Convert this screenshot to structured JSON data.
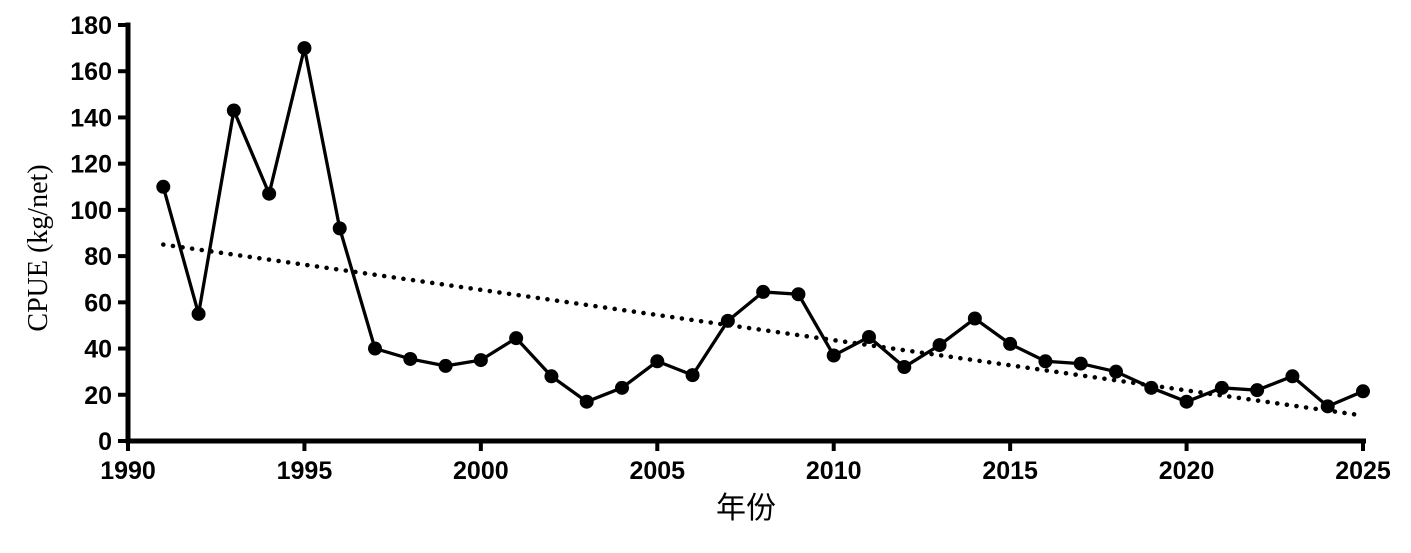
{
  "figure": {
    "background_color": "#ffffff",
    "ink_color": "#000000"
  },
  "chart_data": {
    "type": "line",
    "title": "",
    "xlabel": "年份",
    "ylabel": "CPUE (kg/net)",
    "xlim": [
      1990,
      2025
    ],
    "ylim": [
      0,
      180
    ],
    "x_ticks": [
      1990,
      1995,
      2000,
      2005,
      2010,
      2015,
      2020,
      2025
    ],
    "y_ticks": [
      0,
      20,
      40,
      60,
      80,
      100,
      120,
      140,
      160,
      180
    ],
    "grid": false,
    "legend": "none",
    "series": [
      {
        "name": "cpue-observed",
        "marker": "circle",
        "line_style": "solid",
        "color": "#000000",
        "x": [
          1991,
          1992,
          1993,
          1994,
          1995,
          1996,
          1997,
          1998,
          1999,
          2000,
          2001,
          2002,
          2003,
          2004,
          2005,
          2006,
          2007,
          2008,
          2009,
          2010,
          2011,
          2012,
          2013,
          2014,
          2015,
          2016,
          2017,
          2018,
          2019,
          2020,
          2021,
          2022,
          2023,
          2024,
          2025
        ],
        "values": [
          110,
          55,
          143,
          107,
          170,
          92,
          40,
          35.5,
          32.5,
          35,
          44.5,
          28,
          17,
          23,
          34.5,
          28.5,
          52,
          64.5,
          63.5,
          37,
          45,
          32,
          41.5,
          53,
          42,
          34.5,
          33.5,
          30,
          23,
          17,
          23,
          22,
          28,
          15,
          21.5
        ]
      },
      {
        "name": "linear-trend",
        "marker": "none",
        "line_style": "dotted",
        "color": "#000000",
        "x": [
          1991,
          2025
        ],
        "values": [
          85,
          11
        ]
      }
    ]
  }
}
